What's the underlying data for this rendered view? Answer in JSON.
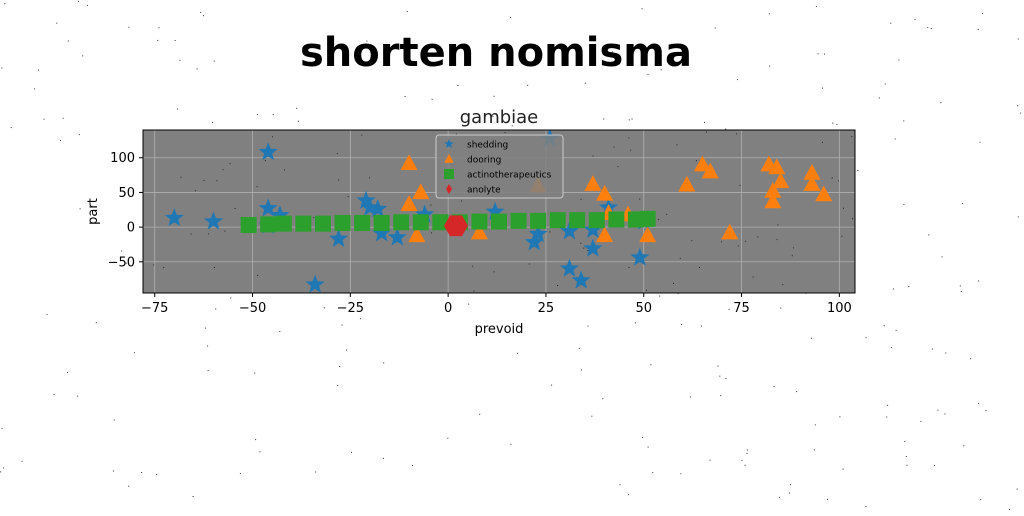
{
  "figure_title": "shorten nomisma",
  "chart_data": {
    "type": "scatter",
    "title": "gambiae",
    "xlabel": "prevoid",
    "ylabel": "part",
    "xlim": [
      -78,
      104
    ],
    "ylim": [
      -95,
      140
    ],
    "xticks": [
      -75,
      -50,
      -25,
      0,
      25,
      50,
      75,
      100
    ],
    "yticks": [
      -50,
      0,
      50,
      100
    ],
    "grid": true,
    "legend_position": "top-center",
    "background_color": "#808080",
    "series": [
      {
        "name": "shedding",
        "marker": "star",
        "color": "#1f77b4",
        "points": [
          [
            -70,
            13
          ],
          [
            -60,
            8
          ],
          [
            -46,
            108
          ],
          [
            -46,
            27
          ],
          [
            -46,
            2
          ],
          [
            -43,
            17
          ],
          [
            -34,
            -83
          ],
          [
            -28,
            -17
          ],
          [
            -21,
            38
          ],
          [
            -20,
            28
          ],
          [
            -18,
            26
          ],
          [
            -17,
            -9
          ],
          [
            -13,
            -15
          ],
          [
            -6,
            18
          ],
          [
            12,
            22
          ],
          [
            22,
            -22
          ],
          [
            23,
            -10
          ],
          [
            26,
            128
          ],
          [
            31,
            -6
          ],
          [
            31,
            -60
          ],
          [
            34,
            -77
          ],
          [
            37,
            -31
          ],
          [
            37,
            -4
          ],
          [
            41,
            28
          ],
          [
            49,
            -44
          ],
          [
            50,
            8
          ]
        ]
      },
      {
        "name": "dooring",
        "marker": "triangle",
        "color": "#ff7f0e",
        "points": [
          [
            -10,
            92
          ],
          [
            -10,
            33
          ],
          [
            -7,
            50
          ],
          [
            -8,
            -12
          ],
          [
            8,
            -8
          ],
          [
            23,
            60
          ],
          [
            37,
            62
          ],
          [
            40,
            48
          ],
          [
            40,
            -12
          ],
          [
            41,
            20
          ],
          [
            46,
            18
          ],
          [
            51,
            -12
          ],
          [
            61,
            61
          ],
          [
            65,
            90
          ],
          [
            67,
            80
          ],
          [
            72,
            -8
          ],
          [
            82,
            90
          ],
          [
            84,
            86
          ],
          [
            83,
            52
          ],
          [
            83,
            37
          ],
          [
            85,
            66
          ],
          [
            93,
            78
          ],
          [
            93,
            62
          ],
          [
            96,
            47
          ]
        ]
      },
      {
        "name": "actinotherapeutics",
        "marker": "square",
        "color": "#2ca02c",
        "points": [
          [
            -51,
            3
          ],
          [
            -46,
            4
          ],
          [
            -42,
            5
          ],
          [
            -37,
            5
          ],
          [
            -32,
            5
          ],
          [
            -27,
            6
          ],
          [
            -22,
            6
          ],
          [
            -17,
            6
          ],
          [
            -12,
            7
          ],
          [
            -7,
            7
          ],
          [
            -2,
            7
          ],
          [
            3,
            7
          ],
          [
            8,
            8
          ],
          [
            13,
            8
          ],
          [
            18,
            9
          ],
          [
            23,
            9
          ],
          [
            28,
            10
          ],
          [
            33,
            10
          ],
          [
            38,
            10
          ],
          [
            43,
            11
          ],
          [
            48,
            11
          ],
          [
            51,
            12
          ]
        ]
      },
      {
        "name": "anolyte",
        "marker": "hexagon",
        "color": "#d62728",
        "points": [
          [
            2,
            2
          ]
        ]
      }
    ]
  }
}
